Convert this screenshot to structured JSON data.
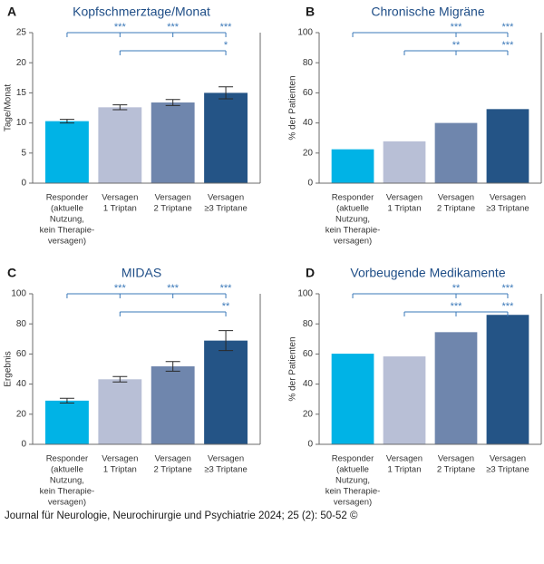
{
  "caption": "Journal für Neurologie, Neurochirurgie und Psychiatrie 2024; 25 (2): 50-52 ©",
  "colors": [
    "#00b3e6",
    "#b8bfd6",
    "#6f86ad",
    "#245486"
  ],
  "chart_data": [
    {
      "type": "bar",
      "panel": "A",
      "title": "Kopfschmerztage/Monat",
      "ylabel": "Tage/Monat",
      "ylim": [
        0,
        25
      ],
      "yticks": [
        0,
        5,
        10,
        15,
        20,
        25
      ],
      "categories": [
        [
          "Responder",
          "(aktuelle",
          "Nutzung,",
          "kein Therapie-",
          "versagen)"
        ],
        [
          "Versagen",
          "1 Triptan"
        ],
        [
          "Versagen",
          "2 Triptane"
        ],
        [
          "Versagen",
          "≥3 Triptane"
        ]
      ],
      "values": [
        10.3,
        12.6,
        13.4,
        15.0
      ],
      "errors": [
        0.3,
        0.4,
        0.5,
        1.0
      ],
      "significance": [
        {
          "from": 0,
          "to": 3,
          "level": 1,
          "labels": [
            {
              "at": 1,
              "text": "***"
            },
            {
              "at": 2,
              "text": "***"
            },
            {
              "at": 3,
              "text": "***"
            }
          ]
        },
        {
          "from": 1,
          "to": 3,
          "level": 0,
          "labels": [
            {
              "at": 3,
              "text": "*"
            }
          ]
        }
      ]
    },
    {
      "type": "bar",
      "panel": "B",
      "title": "Chronische Migräne",
      "ylabel": "% der Patienten",
      "ylim": [
        0,
        100
      ],
      "yticks": [
        0,
        20,
        40,
        60,
        80,
        100
      ],
      "categories": [
        [
          "Responder",
          "(aktuelle",
          "Nutzung,",
          "kein Therapie-",
          "versagen)"
        ],
        [
          "Versagen",
          "1 Triptan"
        ],
        [
          "Versagen",
          "2 Triptane"
        ],
        [
          "Versagen",
          "≥3 Triptane"
        ]
      ],
      "values": [
        22.5,
        27.8,
        40.0,
        49.2
      ],
      "significance": [
        {
          "from": 0,
          "to": 3,
          "level": 1,
          "labels": [
            {
              "at": 2,
              "text": "***"
            },
            {
              "at": 3,
              "text": "***"
            }
          ]
        },
        {
          "from": 1,
          "to": 3,
          "level": 0,
          "labels": [
            {
              "at": 2,
              "text": "**"
            },
            {
              "at": 3,
              "text": "***"
            }
          ]
        }
      ]
    },
    {
      "type": "bar",
      "panel": "C",
      "title": "MIDAS",
      "ylabel": "Ergebnis",
      "ylim": [
        0,
        100
      ],
      "yticks": [
        0,
        20,
        40,
        60,
        80,
        100
      ],
      "categories": [
        [
          "Responder",
          "(aktuelle",
          "Nutzung,",
          "kein Therapie-",
          "versagen)"
        ],
        [
          "Versagen",
          "1 Triptan"
        ],
        [
          "Versagen",
          "2 Triptane"
        ],
        [
          "Versagen",
          "≥3 Triptane"
        ]
      ],
      "values": [
        29.0,
        43.2,
        51.8,
        68.9
      ],
      "errors": [
        1.6,
        1.8,
        3.2,
        6.6
      ],
      "significance": [
        {
          "from": 0,
          "to": 3,
          "level": 1,
          "labels": [
            {
              "at": 1,
              "text": "***"
            },
            {
              "at": 2,
              "text": "***"
            },
            {
              "at": 3,
              "text": "***"
            }
          ]
        },
        {
          "from": 1,
          "to": 3,
          "level": 0,
          "labels": [
            {
              "at": 3,
              "text": "**"
            }
          ]
        }
      ]
    },
    {
      "type": "bar",
      "panel": "D",
      "title": "Vorbeugende Medikamente",
      "ylabel": "% der Patienten",
      "ylim": [
        0,
        100
      ],
      "yticks": [
        0,
        20,
        40,
        60,
        80,
        100
      ],
      "categories": [
        [
          "Responder",
          "(aktuelle",
          "Nutzung,",
          "kein Therapie-",
          "versagen)"
        ],
        [
          "Versagen",
          "1 Triptan"
        ],
        [
          "Versagen",
          "2 Triptane"
        ],
        [
          "Versagen",
          "≥3 Triptane"
        ]
      ],
      "values": [
        60.2,
        58.4,
        74.5,
        86.0
      ],
      "significance": [
        {
          "from": 0,
          "to": 3,
          "level": 1,
          "labels": [
            {
              "at": 2,
              "text": "**"
            },
            {
              "at": 3,
              "text": "***"
            }
          ]
        },
        {
          "from": 1,
          "to": 3,
          "level": 0,
          "labels": [
            {
              "at": 2,
              "text": "***"
            },
            {
              "at": 3,
              "text": "***"
            }
          ]
        }
      ]
    }
  ]
}
